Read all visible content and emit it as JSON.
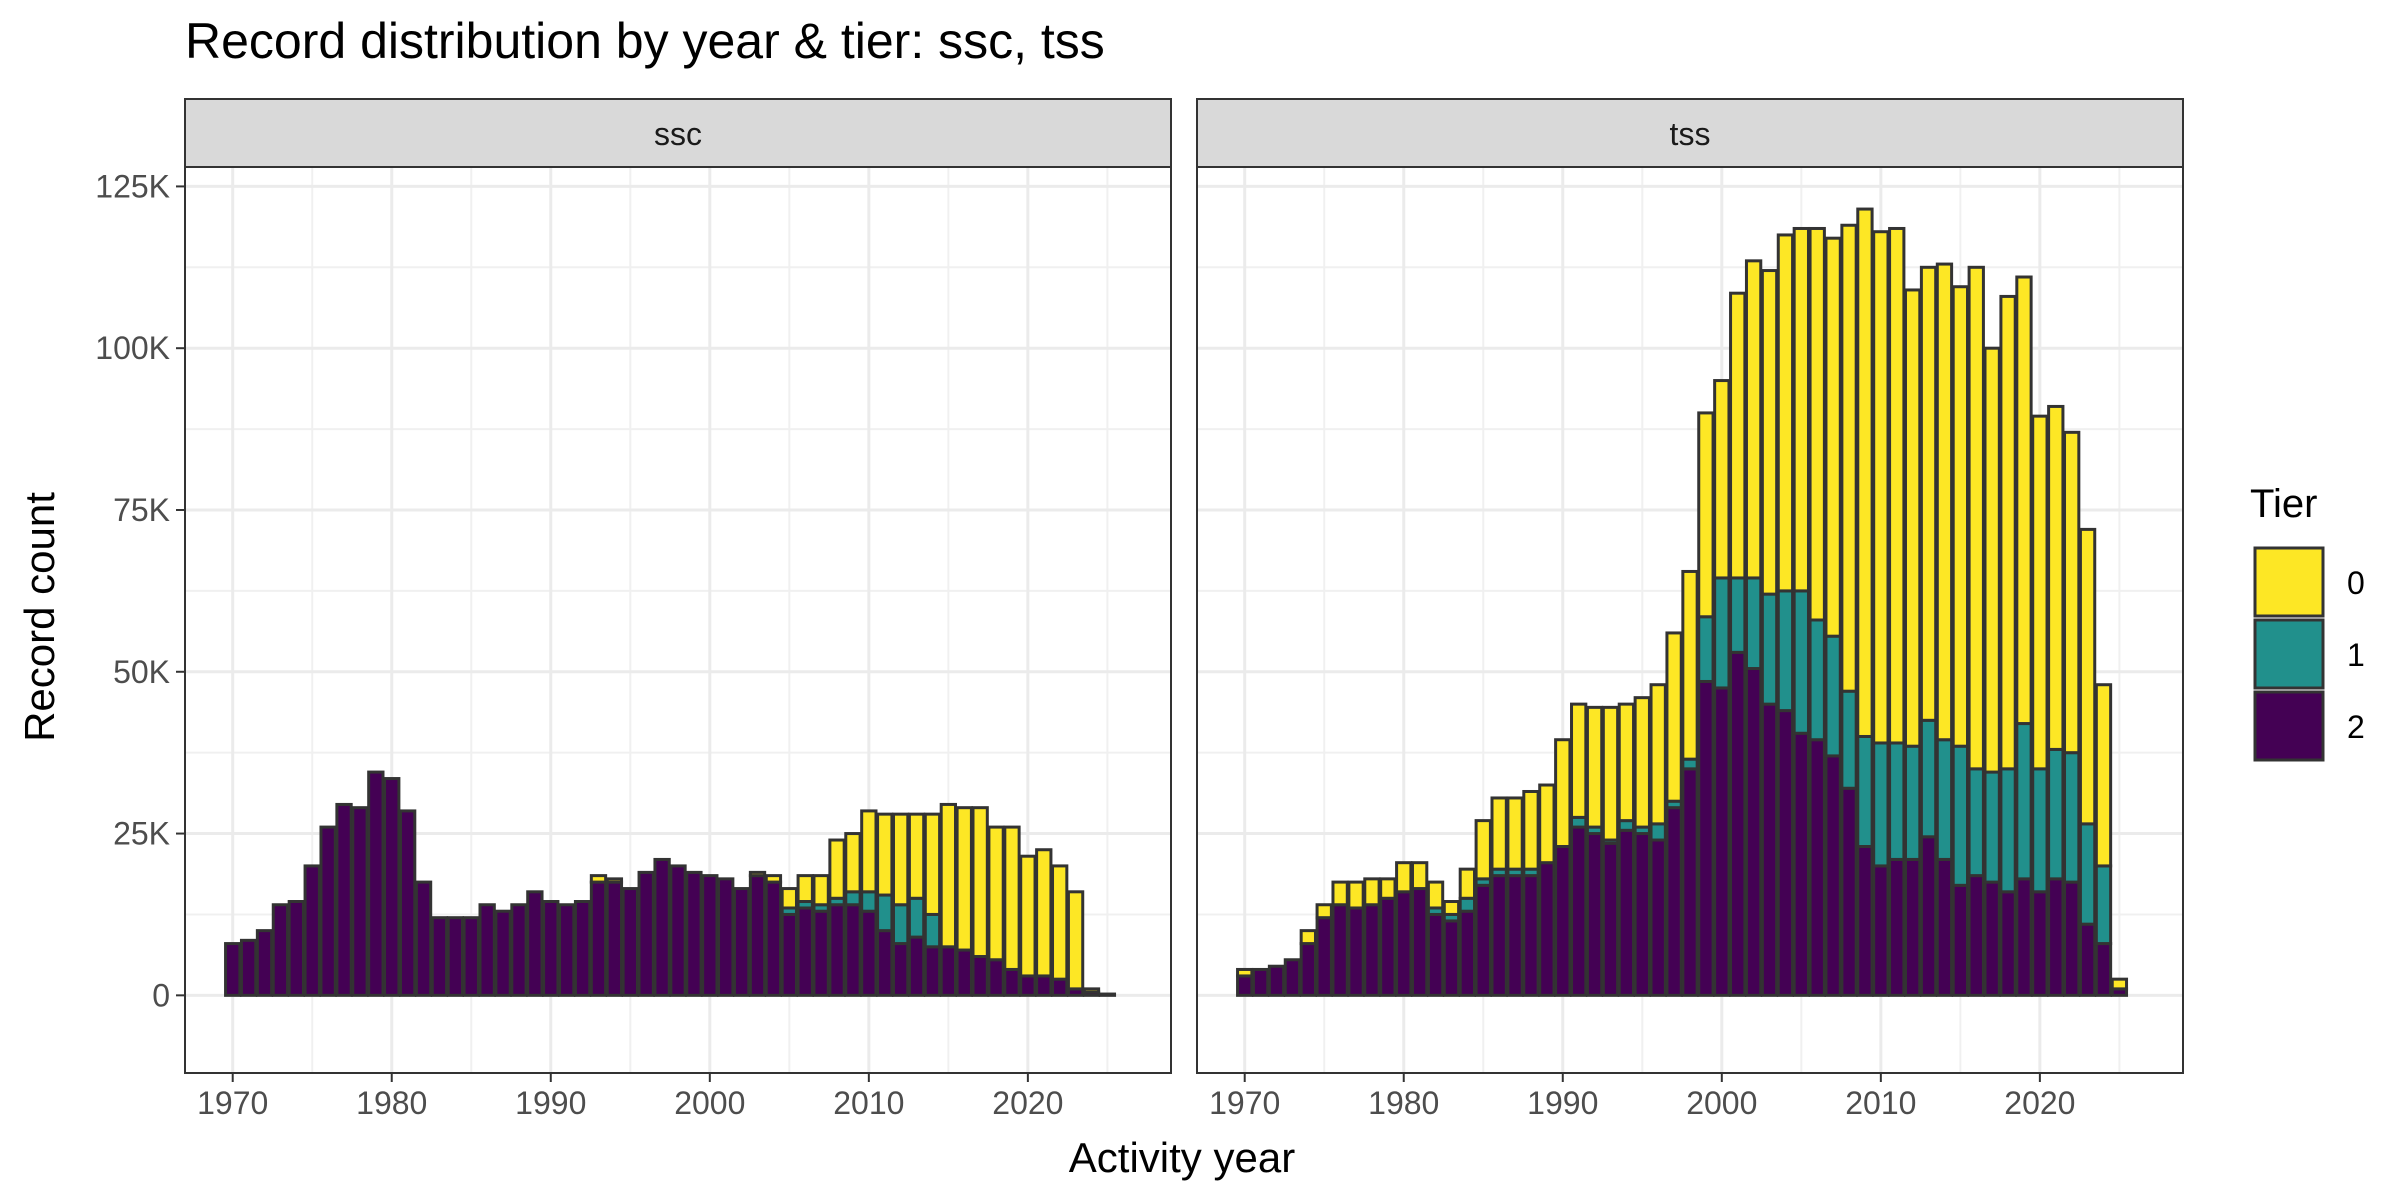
{
  "chart_data": {
    "type": "bar",
    "stacked": true,
    "title": "Record distribution by year & tier: ssc, tss",
    "xlabel": "Activity year",
    "ylabel": "Record count",
    "xlim": [
      1967,
      2029
    ],
    "ylim": [
      -12000,
      128000
    ],
    "x_ticks": [
      1970,
      1980,
      1990,
      2000,
      2010,
      2020
    ],
    "y_ticks": [
      0,
      25000,
      50000,
      75000,
      100000,
      125000
    ],
    "y_tick_labels": [
      "0",
      "25K",
      "50K",
      "75K",
      "100K",
      "125K"
    ],
    "grid": true,
    "legend": {
      "title": "Tier",
      "position": "right",
      "entries": [
        {
          "label": "0",
          "color": "#FDE725"
        },
        {
          "label": "1",
          "color": "#21908C"
        },
        {
          "label": "2",
          "color": "#440154"
        }
      ]
    },
    "panels": [
      {
        "name": "ssc",
        "years": [
          1970,
          1971,
          1972,
          1973,
          1974,
          1975,
          1976,
          1977,
          1978,
          1979,
          1980,
          1981,
          1982,
          1983,
          1984,
          1985,
          1986,
          1987,
          1988,
          1989,
          1990,
          1991,
          1992,
          1993,
          1994,
          1995,
          1996,
          1997,
          1998,
          1999,
          2000,
          2001,
          2002,
          2003,
          2004,
          2005,
          2006,
          2007,
          2008,
          2009,
          2010,
          2011,
          2012,
          2013,
          2014,
          2015,
          2016,
          2017,
          2018,
          2019,
          2020,
          2021,
          2022,
          2023,
          2024,
          2025
        ],
        "series": [
          {
            "name": "2",
            "values": [
              8000,
              8500,
              10000,
              14000,
              14500,
              20000,
              26000,
              29500,
              29000,
              34500,
              33500,
              28500,
              17500,
              12000,
              12000,
              12000,
              14000,
              13000,
              14000,
              16000,
              14500,
              14000,
              14500,
              17500,
              17500,
              16500,
              19000,
              21000,
              20000,
              19000,
              18500,
              18000,
              16500,
              18500,
              17500,
              12500,
              13500,
              13000,
              14000,
              14000,
              13000,
              10000,
              8000,
              9000,
              7500,
              7500,
              7000,
              6000,
              5500,
              4000,
              3000,
              3000,
              2500,
              1000,
              500,
              200
            ]
          },
          {
            "name": "1",
            "values": [
              0,
              0,
              0,
              0,
              0,
              0,
              0,
              0,
              0,
              0,
              0,
              0,
              0,
              0,
              0,
              0,
              0,
              0,
              0,
              0,
              0,
              0,
              0,
              0,
              0,
              0,
              0,
              0,
              0,
              0,
              0,
              0,
              0,
              0,
              0,
              1000,
              1000,
              1000,
              1000,
              2000,
              3000,
              5500,
              6000,
              6000,
              5000,
              0,
              0,
              0,
              0,
              0,
              0,
              0,
              0,
              0,
              0,
              0
            ]
          },
          {
            "name": "0",
            "values": [
              0,
              0,
              0,
              0,
              0,
              0,
              0,
              0,
              0,
              0,
              0,
              0,
              0,
              0,
              0,
              0,
              0,
              0,
              0,
              0,
              0,
              0,
              0,
              1000,
              500,
              0,
              0,
              0,
              0,
              0,
              0,
              0,
              0,
              500,
              1000,
              3000,
              4000,
              4500,
              9000,
              9000,
              12500,
              12500,
              14000,
              13000,
              15500,
              22000,
              22000,
              23000,
              20500,
              22000,
              18500,
              19500,
              17500,
              15000,
              500,
              0
            ]
          }
        ]
      },
      {
        "name": "tss",
        "years": [
          1970,
          1971,
          1972,
          1973,
          1974,
          1975,
          1976,
          1977,
          1978,
          1979,
          1980,
          1981,
          1982,
          1983,
          1984,
          1985,
          1986,
          1987,
          1988,
          1989,
          1990,
          1991,
          1992,
          1993,
          1994,
          1995,
          1996,
          1997,
          1998,
          1999,
          2000,
          2001,
          2002,
          2003,
          2004,
          2005,
          2006,
          2007,
          2008,
          2009,
          2010,
          2011,
          2012,
          2013,
          2014,
          2015,
          2016,
          2017,
          2018,
          2019,
          2020,
          2021,
          2022,
          2023,
          2024,
          2025
        ],
        "series": [
          {
            "name": "2",
            "values": [
              3000,
              4000,
              4500,
              5500,
              8000,
              12000,
              14000,
              13500,
              14000,
              15000,
              16000,
              16500,
              12500,
              11500,
              13000,
              17000,
              18500,
              18500,
              18500,
              20500,
              23000,
              26000,
              25000,
              23500,
              25500,
              25000,
              24000,
              29000,
              35000,
              48500,
              47500,
              53000,
              50500,
              45000,
              44000,
              40500,
              39500,
              37000,
              32000,
              23000,
              20000,
              21000,
              21000,
              24500,
              21000,
              17000,
              18500,
              17500,
              16000,
              18000,
              16000,
              18000,
              17500,
              11000,
              8000,
              1000
            ]
          },
          {
            "name": "1",
            "values": [
              0,
              0,
              0,
              0,
              0,
              0,
              0,
              0,
              0,
              0,
              0,
              0,
              1000,
              1000,
              2000,
              1000,
              1000,
              1000,
              1000,
              0,
              0,
              1500,
              1000,
              500,
              1500,
              1000,
              2500,
              1000,
              1500,
              10000,
              17000,
              11500,
              14000,
              17000,
              18500,
              22000,
              18500,
              18500,
              15000,
              17000,
              19000,
              18000,
              17500,
              18000,
              18500,
              21500,
              16500,
              17000,
              19000,
              24000,
              19000,
              20000,
              20000,
              15500,
              12000,
              0
            ]
          },
          {
            "name": "0",
            "values": [
              1000,
              0,
              0,
              0,
              2000,
              2000,
              3500,
              4000,
              4000,
              3000,
              4500,
              4000,
              4000,
              2000,
              4500,
              9000,
              11000,
              11000,
              12000,
              12000,
              16500,
              17500,
              18500,
              20500,
              18000,
              20000,
              21500,
              26000,
              29000,
              31500,
              30500,
              44000,
              49000,
              50000,
              55000,
              56000,
              60500,
              61500,
              72000,
              81500,
              79000,
              79500,
              70500,
              70000,
              73500,
              71000,
              77500,
              65500,
              73000,
              69000,
              54500,
              53000,
              49500,
              45500,
              28000,
              1500
            ]
          }
        ]
      }
    ]
  }
}
